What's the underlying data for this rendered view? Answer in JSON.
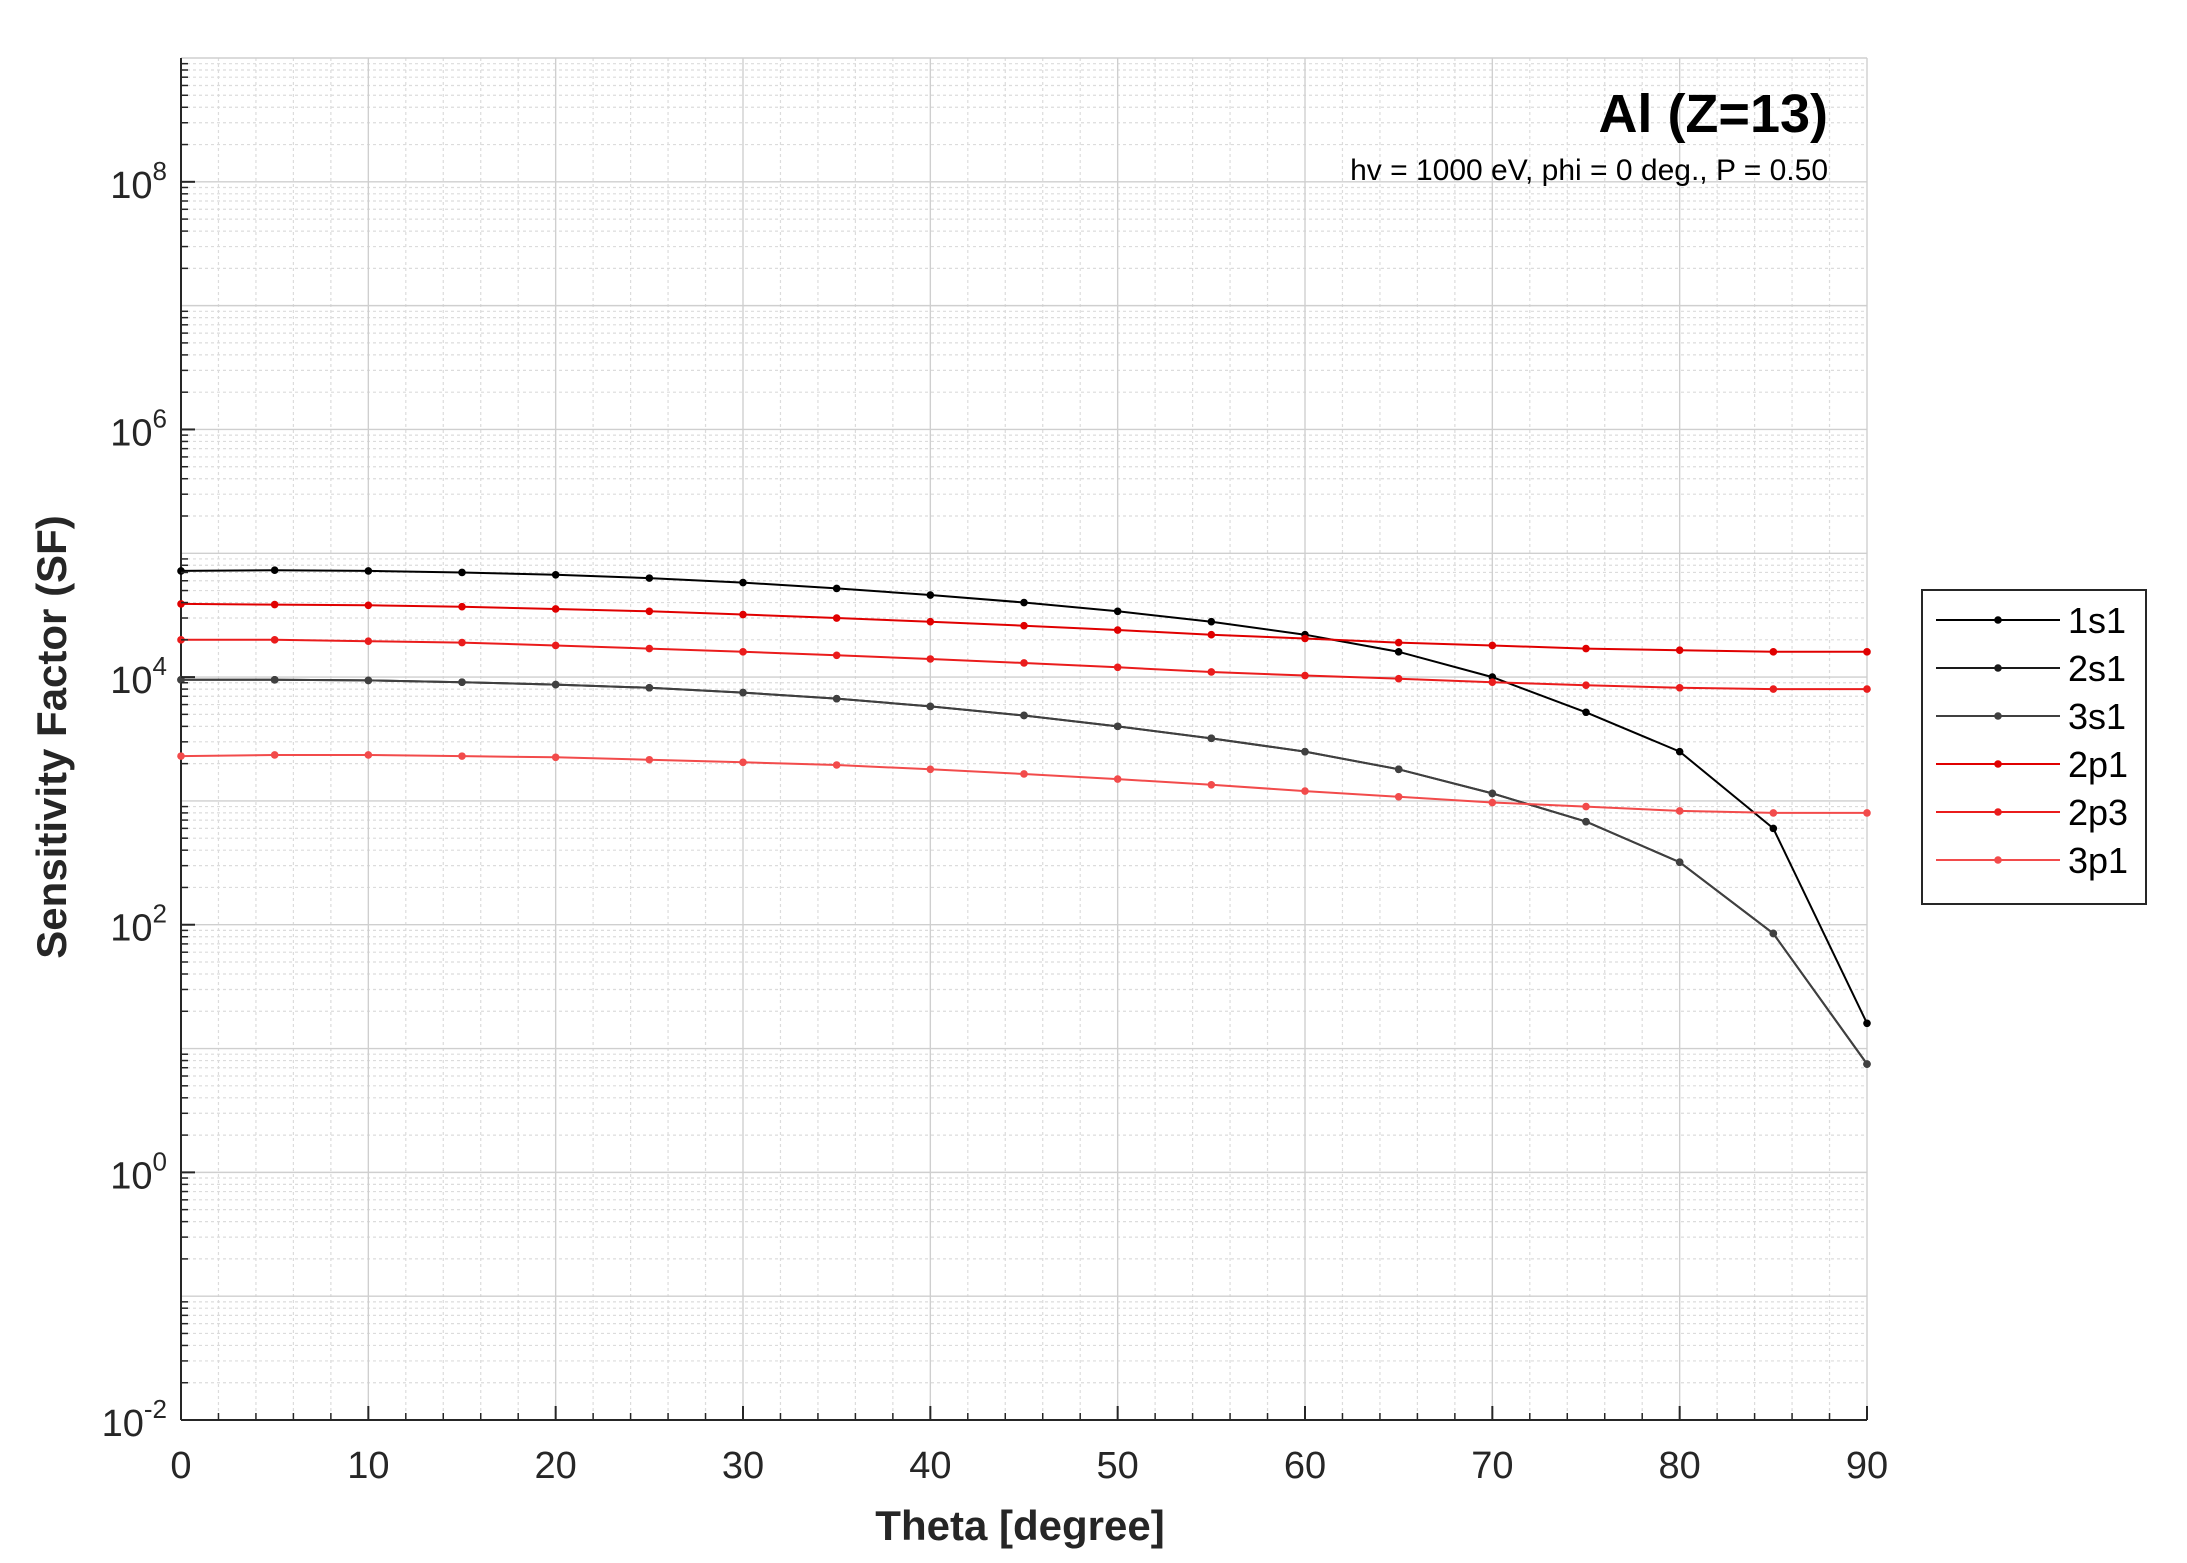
{
  "chart_data": {
    "type": "line",
    "title": "Al (Z=13)",
    "subtitle": "hv = 1000 eV, phi = 0 deg., P = 0.50",
    "xlabel": "Theta [degree]",
    "ylabel": "Sensitivity Factor (SF)",
    "xlim": [
      0,
      90
    ],
    "ylim": [
      0.01,
      1000000000
    ],
    "yscale": "log",
    "grid": true,
    "minor_grid": true,
    "legend_position": "outside-right",
    "x_ticks": [
      {
        "value": 0,
        "label": "0"
      },
      {
        "value": 10,
        "label": "10"
      },
      {
        "value": 20,
        "label": "20"
      },
      {
        "value": 30,
        "label": "30"
      },
      {
        "value": 40,
        "label": "40"
      },
      {
        "value": 50,
        "label": "50"
      },
      {
        "value": 60,
        "label": "60"
      },
      {
        "value": 70,
        "label": "70"
      },
      {
        "value": 80,
        "label": "80"
      },
      {
        "value": 90,
        "label": "90"
      }
    ],
    "y_ticks": [
      {
        "value": 0.01,
        "base": "10",
        "exp": "-2"
      },
      {
        "value": 1,
        "base": "10",
        "exp": "0"
      },
      {
        "value": 100,
        "base": "10",
        "exp": "2"
      },
      {
        "value": 10000,
        "base": "10",
        "exp": "4"
      },
      {
        "value": 1000000,
        "base": "10",
        "exp": "6"
      },
      {
        "value": 100000000,
        "base": "10",
        "exp": "8"
      }
    ],
    "x": [
      0,
      5,
      10,
      15,
      20,
      25,
      30,
      35,
      40,
      45,
      50,
      55,
      60,
      65,
      70,
      75,
      80,
      85,
      90
    ],
    "series": [
      {
        "name": "1s1",
        "color": "#000000",
        "values": [
          72000,
          73000,
          72000,
          70000,
          67000,
          63000,
          58000,
          52000,
          46000,
          40000,
          34000,
          28000,
          22000,
          16000,
          10000,
          5200,
          2500,
          600,
          16
        ]
      },
      {
        "name": "2s1",
        "color": "#1a1a1a",
        "values": [
          9500,
          9500,
          9400,
          9100,
          8700,
          8200,
          7500,
          6700,
          5800,
          4900,
          4000,
          3200,
          2500,
          1800,
          1150,
          680,
          320,
          85,
          7.5
        ]
      },
      {
        "name": "3s1",
        "color": "#404040",
        "values": [
          9500,
          9500,
          9400,
          9100,
          8700,
          8200,
          7500,
          6700,
          5800,
          4900,
          4000,
          3200,
          2500,
          1800,
          1150,
          680,
          320,
          85,
          7.5
        ]
      },
      {
        "name": "2p1",
        "color": "#e00000",
        "values": [
          39000,
          38500,
          38000,
          37000,
          35500,
          34000,
          32000,
          30000,
          28000,
          26000,
          24000,
          22000,
          20500,
          19000,
          18000,
          17000,
          16500,
          16000,
          16000
        ]
      },
      {
        "name": "2p3",
        "color": "#ea1c1c",
        "values": [
          20000,
          20000,
          19500,
          19000,
          18000,
          17000,
          16000,
          15000,
          14000,
          13000,
          12000,
          11000,
          10300,
          9700,
          9100,
          8600,
          8200,
          8000,
          8000
        ]
      },
      {
        "name": "3p1",
        "color": "#f24b4b",
        "values": [
          2300,
          2350,
          2350,
          2300,
          2250,
          2150,
          2050,
          1950,
          1800,
          1650,
          1500,
          1350,
          1200,
          1080,
          970,
          900,
          830,
          800,
          800
        ]
      }
    ]
  }
}
